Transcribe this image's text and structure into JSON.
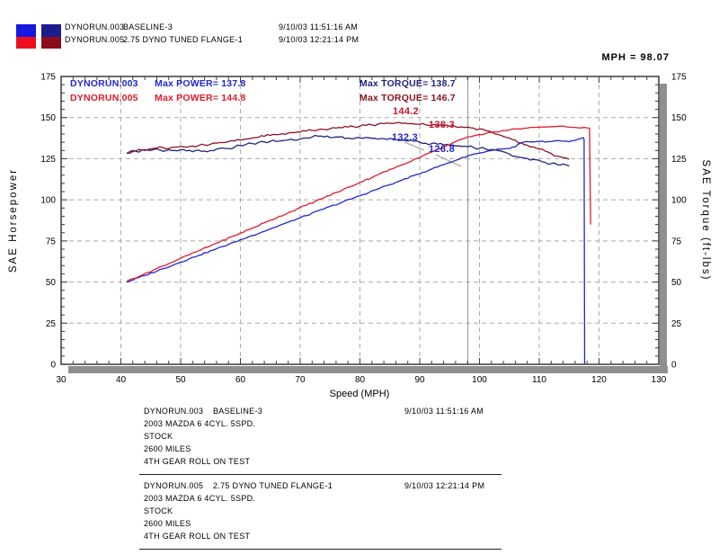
{
  "header": {
    "swatches": [
      {
        "top": "#1717e0",
        "bottom": "#ed0f1f"
      },
      {
        "top": "#1c1c8c",
        "bottom": "#8a0d1c"
      }
    ],
    "runs": [
      {
        "file": "DYNORUN.003",
        "desc": "BASELINE-3",
        "timestamp": "9/10/03 11:51:16 AM"
      },
      {
        "file": "DYNORUN.005",
        "desc": "2.75 DYNO TUNED FLANGE-1",
        "timestamp": "9/10/03 12:21:14 PM"
      }
    ]
  },
  "cursor_readout": "MPH = 98.07",
  "chart_data": {
    "type": "line",
    "title": "",
    "xlabel": "Speed (MPH)",
    "ylabel_left": "SAE Horsepower",
    "ylabel_right": "SAE Torque (ft-lbs)",
    "xlim": [
      30,
      130
    ],
    "ylim": [
      0,
      175
    ],
    "xticks": [
      30,
      40,
      50,
      60,
      70,
      80,
      90,
      100,
      110,
      120,
      130
    ],
    "yticks": [
      0,
      25,
      50,
      75,
      100,
      125,
      150,
      175
    ],
    "grid": true,
    "cursor_mph": 98.07,
    "colors": {
      "power_blue": "#2128cf",
      "power_red": "#e11a2c",
      "torque_blue": "#23247d",
      "torque_red": "#8c1322",
      "grid": "#ababab",
      "frame": "#3c3c3c",
      "shadow": "#8f8f8f",
      "cursor": "#8f8f8f"
    },
    "legend": [
      {
        "file": "DYNORUN.003",
        "power_label": "Max POWER= 137.8",
        "torque_label": "Max TORQUE= 138.7"
      },
      {
        "file": "DYNORUN.005",
        "power_label": "Max POWER= 144.8",
        "torque_label": "Max TORQUE= 146.7"
      }
    ],
    "cursor_values": [
      {
        "text": "144.2",
        "color": "#c8152b"
      },
      {
        "text": "138.3",
        "color": "#c8152b"
      },
      {
        "text": "132.3",
        "color": "#2128cf"
      },
      {
        "text": "126.8",
        "color": "#2128cf"
      }
    ],
    "series": [
      {
        "name": "DYNORUN.003 torque",
        "color": "#23247d",
        "noise": 0.8,
        "points": [
          [
            41,
            128
          ],
          [
            42,
            130
          ],
          [
            43,
            129
          ],
          [
            44,
            130.5
          ],
          [
            45,
            130
          ],
          [
            46,
            131
          ],
          [
            47,
            129.5
          ],
          [
            48,
            130.5
          ],
          [
            49,
            130
          ],
          [
            50,
            130.5
          ],
          [
            51,
            129.8
          ],
          [
            52,
            129.3
          ],
          [
            53,
            130.2
          ],
          [
            54,
            129.6
          ],
          [
            55,
            130
          ],
          [
            56,
            130.8
          ],
          [
            57,
            131.5
          ],
          [
            58,
            131.2
          ],
          [
            59,
            132
          ],
          [
            60,
            133
          ],
          [
            61,
            133.8
          ],
          [
            62,
            134.2
          ],
          [
            63,
            134.8
          ],
          [
            64,
            135.2
          ],
          [
            65,
            135.6
          ],
          [
            66,
            135.4
          ],
          [
            67,
            136
          ],
          [
            68,
            136.4
          ],
          [
            69,
            136.2
          ],
          [
            70,
            137
          ],
          [
            71,
            137.6
          ],
          [
            72,
            138.2
          ],
          [
            73,
            138.7
          ],
          [
            74,
            138.2
          ],
          [
            75,
            137.8
          ],
          [
            76,
            138.2
          ],
          [
            77,
            138.4
          ],
          [
            78,
            137.6
          ],
          [
            79,
            137.2
          ],
          [
            80,
            137.6
          ],
          [
            81,
            137.9
          ],
          [
            82,
            137.4
          ],
          [
            83,
            136.9
          ],
          [
            84,
            137.2
          ],
          [
            85,
            137.3
          ],
          [
            86,
            136.6
          ],
          [
            87,
            136.2
          ],
          [
            88,
            135.8
          ],
          [
            89,
            135.6
          ],
          [
            90,
            135
          ],
          [
            91,
            134.4
          ],
          [
            92,
            134.2
          ],
          [
            93,
            133.8
          ],
          [
            94,
            133.4
          ],
          [
            95,
            133.2
          ],
          [
            96,
            132.8
          ],
          [
            97,
            132.5
          ],
          [
            98.07,
            132.3
          ],
          [
            99,
            131.8
          ],
          [
            100,
            131.4
          ],
          [
            101,
            131
          ],
          [
            102,
            130.6
          ],
          [
            103,
            130
          ],
          [
            104,
            129.2
          ],
          [
            105,
            127.8
          ],
          [
            106,
            126.5
          ],
          [
            107,
            125.8
          ],
          [
            108,
            125.2
          ],
          [
            109,
            124.6
          ],
          [
            110,
            124
          ],
          [
            111,
            122.8
          ],
          [
            112,
            122
          ],
          [
            113,
            121.4
          ],
          [
            114,
            121.8
          ],
          [
            115,
            120.6
          ]
        ]
      },
      {
        "name": "DYNORUN.005 torque",
        "color": "#8c1322",
        "noise": 0.8,
        "points": [
          [
            41,
            128.6
          ],
          [
            42,
            129.4
          ],
          [
            43,
            130.6
          ],
          [
            44,
            130
          ],
          [
            45,
            131
          ],
          [
            46,
            131.4
          ],
          [
            47,
            131.8
          ],
          [
            48,
            131.2
          ],
          [
            49,
            132
          ],
          [
            50,
            132.4
          ],
          [
            51,
            132
          ],
          [
            52,
            132.8
          ],
          [
            53,
            133
          ],
          [
            54,
            133.4
          ],
          [
            55,
            133.8
          ],
          [
            56,
            134.4
          ],
          [
            57,
            134.8
          ],
          [
            58,
            135.4
          ],
          [
            59,
            135.8
          ],
          [
            60,
            136.4
          ],
          [
            61,
            137
          ],
          [
            62,
            137.6
          ],
          [
            63,
            138
          ],
          [
            64,
            138.6
          ],
          [
            65,
            139.2
          ],
          [
            66,
            139.6
          ],
          [
            67,
            140.2
          ],
          [
            68,
            140.6
          ],
          [
            69,
            140.8
          ],
          [
            70,
            141.2
          ],
          [
            71,
            141.8
          ],
          [
            72,
            142.2
          ],
          [
            73,
            142.6
          ],
          [
            74,
            142.8
          ],
          [
            75,
            143.2
          ],
          [
            76,
            143.6
          ],
          [
            77,
            143.8
          ],
          [
            78,
            144.2
          ],
          [
            79,
            144.4
          ],
          [
            80,
            144.8
          ],
          [
            81,
            145.2
          ],
          [
            82,
            145.6
          ],
          [
            83,
            146
          ],
          [
            84,
            146.3
          ],
          [
            85,
            146.5
          ],
          [
            86,
            146.7
          ],
          [
            87,
            146.5
          ],
          [
            88,
            146.3
          ],
          [
            89,
            146.1
          ],
          [
            90,
            145.9
          ],
          [
            91,
            145.6
          ],
          [
            92,
            145.4
          ],
          [
            93,
            145.1
          ],
          [
            94,
            144.9
          ],
          [
            95,
            144.7
          ],
          [
            96,
            144.5
          ],
          [
            97,
            144.3
          ],
          [
            98.07,
            144.2
          ],
          [
            99,
            143.6
          ],
          [
            100,
            143
          ],
          [
            101,
            142.2
          ],
          [
            102,
            141.2
          ],
          [
            103,
            139.8
          ],
          [
            104,
            138.6
          ],
          [
            105,
            137.6
          ],
          [
            106,
            136.2
          ],
          [
            107,
            134.6
          ],
          [
            108,
            133.2
          ],
          [
            109,
            132.2
          ],
          [
            110,
            131
          ],
          [
            111,
            129.6
          ],
          [
            112,
            128.2
          ],
          [
            113,
            126.6
          ],
          [
            114,
            125.6
          ],
          [
            115,
            124.6
          ]
        ]
      },
      {
        "name": "DYNORUN.003 power",
        "color": "#2128cf",
        "noise": 0.4,
        "points": [
          [
            41,
            50
          ],
          [
            44,
            54
          ],
          [
            47,
            58.1
          ],
          [
            50,
            62.1
          ],
          [
            53,
            66.2
          ],
          [
            56,
            70.2
          ],
          [
            59,
            74.3
          ],
          [
            62,
            78.3
          ],
          [
            65,
            82.3
          ],
          [
            68,
            86.4
          ],
          [
            71,
            90.4
          ],
          [
            74,
            94.5
          ],
          [
            77,
            98.5
          ],
          [
            80,
            102.5
          ],
          [
            83,
            106.6
          ],
          [
            86,
            110.6
          ],
          [
            89,
            114.7
          ],
          [
            92,
            118.7
          ],
          [
            95,
            122.7
          ],
          [
            98.07,
            126.8
          ],
          [
            99.5,
            128
          ],
          [
            101,
            129.2
          ],
          [
            102.5,
            130.2
          ],
          [
            104,
            130.9
          ],
          [
            105,
            131.2
          ],
          [
            106,
            132.3
          ],
          [
            107,
            134.6
          ],
          [
            108,
            135.4
          ],
          [
            109,
            135.2
          ],
          [
            110,
            135.5
          ],
          [
            111,
            135.1
          ],
          [
            112,
            135.4
          ],
          [
            113,
            136
          ],
          [
            114,
            135.6
          ],
          [
            115,
            135.3
          ],
          [
            116,
            136.1
          ],
          [
            117,
            137.3
          ],
          [
            117.4,
            137.8
          ],
          [
            117.5,
            136.5
          ],
          [
            117.6,
            0
          ]
        ]
      },
      {
        "name": "DYNORUN.005 power",
        "color": "#e11a2c",
        "noise": 0.4,
        "points": [
          [
            41,
            50.5
          ],
          [
            44,
            55.1
          ],
          [
            47,
            59.7
          ],
          [
            50,
            64.4
          ],
          [
            53,
            69
          ],
          [
            56,
            73.6
          ],
          [
            59,
            78.2
          ],
          [
            62,
            82.8
          ],
          [
            65,
            87.5
          ],
          [
            68,
            92.1
          ],
          [
            71,
            96.7
          ],
          [
            74,
            101.3
          ],
          [
            77,
            105.9
          ],
          [
            80,
            110.6
          ],
          [
            83,
            115.2
          ],
          [
            86,
            119.8
          ],
          [
            89,
            124.4
          ],
          [
            92,
            129
          ],
          [
            95,
            133.6
          ],
          [
            98.07,
            138.3
          ],
          [
            100,
            139.6
          ],
          [
            102,
            141
          ],
          [
            104,
            142.2
          ],
          [
            106,
            143
          ],
          [
            108,
            143.6
          ],
          [
            110,
            144.1
          ],
          [
            112,
            144.5
          ],
          [
            113.5,
            144.8
          ],
          [
            114.5,
            144.4
          ],
          [
            115.5,
            144.1
          ],
          [
            116.5,
            143.8
          ],
          [
            117.5,
            144
          ],
          [
            118.4,
            143.6
          ],
          [
            118.6,
            85
          ]
        ]
      }
    ]
  },
  "footer_blocks": [
    {
      "file": "DYNORUN.003",
      "desc": "BASELINE-3",
      "timestamp": "9/10/03 11:51:16 AM",
      "lines": [
        "2003 MAZDA 6 4CYL. 5SPD.",
        "STOCK",
        "2600 MILES",
        "4TH GEAR ROLL ON TEST"
      ]
    },
    {
      "file": "DYNORUN.005",
      "desc": "2.75 DYNO TUNED FLANGE-1",
      "timestamp": "9/10/03 12:21:14 PM",
      "lines": [
        "2003 MAZDA 6 4CYL. 5SPD.",
        "STOCK",
        "2600 MILES",
        "4TH GEAR ROLL ON TEST"
      ]
    }
  ]
}
